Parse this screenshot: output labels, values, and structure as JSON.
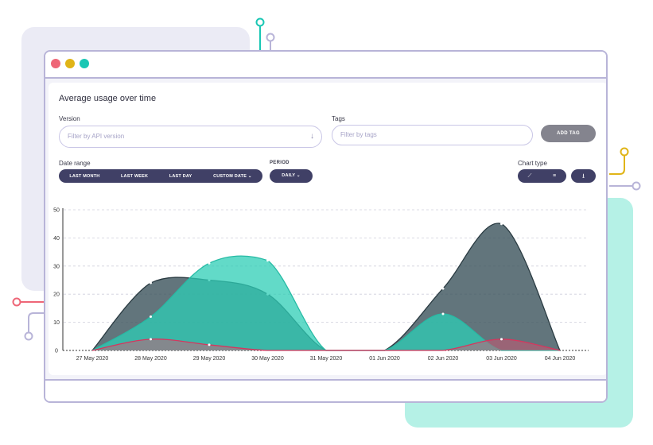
{
  "panel": {
    "title": "Average usage over time"
  },
  "filters": {
    "version_label": "Version",
    "version_placeholder": "Filter by API version",
    "tags_label": "Tags",
    "tags_placeholder": "Filter by tags",
    "add_tag_label": "ADD TAG",
    "date_range_label": "Date range",
    "date_range_options": [
      "LAST MONTH",
      "LAST WEEK",
      "LAST DAY",
      "CUSTOM DATE"
    ],
    "period_label": "PERIOD",
    "period_value": "DAILY",
    "chart_type_label": "Chart type",
    "icons": [
      "chevron-down-icon",
      "line-chart-icon",
      "bar-chart-icon",
      "download-icon"
    ]
  },
  "colors": {
    "dark_series": "#3b535b",
    "teal_series": "#2ecdb6",
    "pink_series": "#e0506e",
    "button_dark": "#404066",
    "button_gray": "#84848e"
  },
  "chart_data": {
    "type": "area",
    "x": [
      "27 May 2020",
      "28 May 2020",
      "29 May 2020",
      "30 May 2020",
      "31 May 2020",
      "01 Jun 2020",
      "02 Jun 2020",
      "03 Jun 2020",
      "04 Jun 2020"
    ],
    "ylim": [
      0,
      50
    ],
    "yticks": [
      0,
      10,
      20,
      30,
      40,
      50
    ],
    "grid": true,
    "series": [
      {
        "values": [
          0,
          24,
          25,
          20,
          0,
          0,
          22,
          45,
          0
        ]
      },
      {
        "values": [
          0,
          12,
          31,
          32,
          0,
          0,
          13,
          0,
          0
        ]
      },
      {
        "values": [
          0,
          4,
          2,
          0,
          0,
          0,
          0,
          4,
          0
        ]
      }
    ]
  }
}
